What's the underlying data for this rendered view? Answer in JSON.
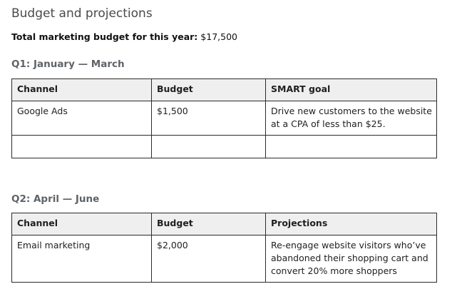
{
  "title": "Budget and projections",
  "total": {
    "label": "Total marketing budget for this year:",
    "value": "$17,500"
  },
  "q1": {
    "heading": "Q1: January — March",
    "columns": [
      "Channel",
      "Budget",
      "SMART goal"
    ],
    "rows": [
      [
        "Google Ads",
        "$1,500",
        "Drive new customers to the website at a CPA of less than $25."
      ],
      [
        "",
        "",
        ""
      ]
    ]
  },
  "q2": {
    "heading": "Q2: April — June",
    "columns": [
      "Channel",
      "Budget",
      "Projections"
    ],
    "rows": [
      [
        "Email marketing",
        "$2,000",
        "Re-engage website visitors who’ve abandoned their shopping cart and convert 20% more shoppers"
      ]
    ]
  }
}
